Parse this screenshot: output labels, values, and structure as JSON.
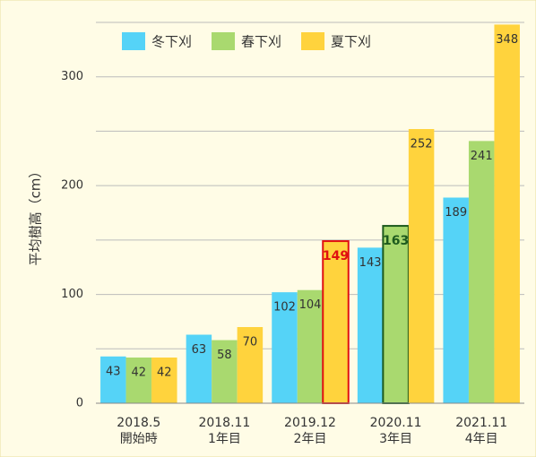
{
  "chart_data": {
    "type": "bar",
    "y_label": "平均樹高（cm）",
    "categories": [
      [
        "2018.5",
        "開始時"
      ],
      [
        "2018.11",
        "1年目"
      ],
      [
        "2019.12",
        "2年目"
      ],
      [
        "2020.11",
        "3年目"
      ],
      [
        "2021.11",
        "4年目"
      ]
    ],
    "series": [
      {
        "name": "冬下刈",
        "color": "#55d3f7",
        "values": [
          43,
          63,
          102,
          143,
          189
        ]
      },
      {
        "name": "春下刈",
        "color": "#a9d96f",
        "values": [
          42,
          58,
          104,
          163,
          241
        ]
      },
      {
        "name": "夏下刈",
        "color": "#ffd33d",
        "values": [
          42,
          70,
          149,
          252,
          348
        ]
      }
    ],
    "highlights": [
      {
        "series": 2,
        "index": 2,
        "color": "#e01010"
      },
      {
        "series": 1,
        "index": 3,
        "color": "#1d5a1d"
      }
    ],
    "ylim": [
      0,
      350
    ],
    "yticks": [
      0,
      100,
      200,
      300
    ],
    "minor_yticks": [
      50,
      150,
      250,
      350
    ],
    "grid": true,
    "legend": "top-left"
  }
}
